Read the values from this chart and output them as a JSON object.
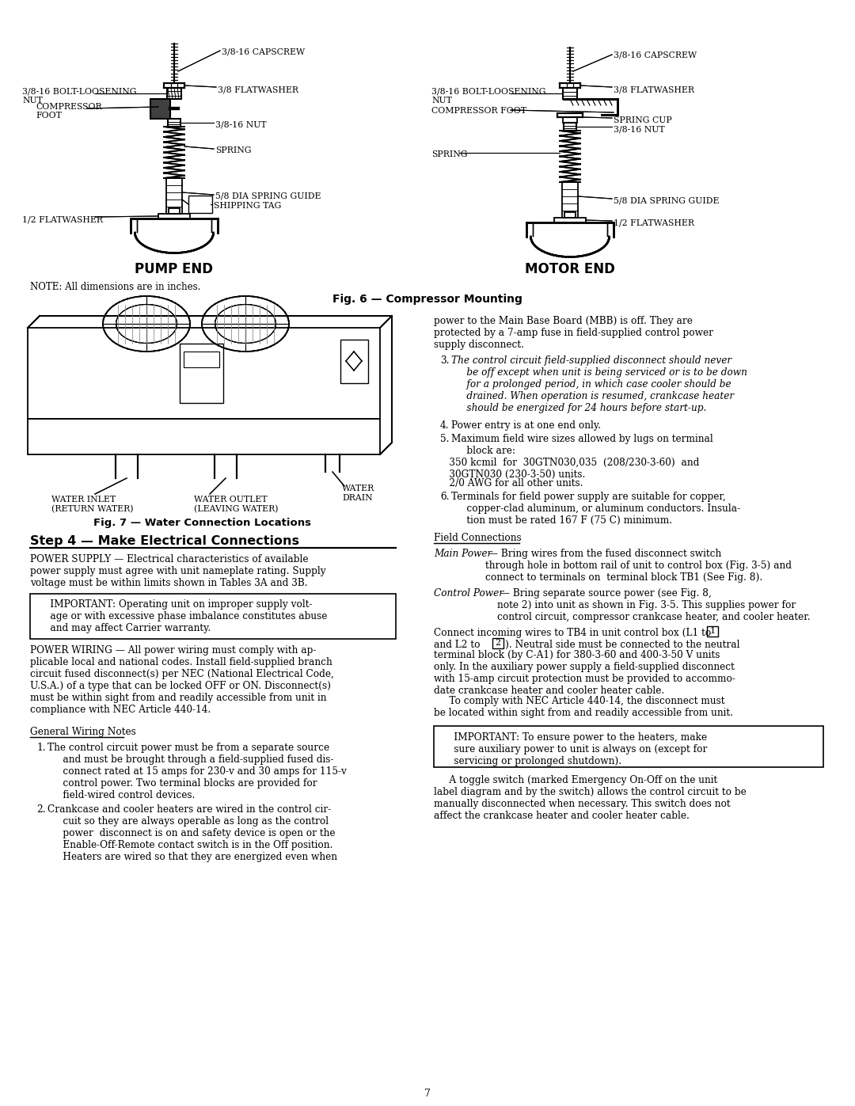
{
  "page_number": "7",
  "background_color": "#ffffff",
  "fig6_caption": "Fig. 6 — Compressor Mounting",
  "fig7_caption": "Fig. 7 — Water Connection Locations",
  "note_text": "NOTE: All dimensions are in inches.",
  "pump_end_label": "PUMP END",
  "motor_end_label": "MOTOR END",
  "step4_heading": "Step 4 — Make Electrical Connections",
  "power_supply_text": "POWER SUPPLY — Electrical characteristics of available\npower supply must agree with unit nameplate rating. Supply\nvoltage must be within limits shown in Tables 3A and 3B.",
  "important_box1": "     IMPORTANT: Operating unit on improper supply volt-\n     age or with excessive phase imbalance constitutes abuse\n     and may affect Carrier warranty.",
  "power_wiring_text": "POWER WIRING — All power wiring must comply with ap-\nplicable local and national codes. Install field-supplied branch\ncircuit fused disconnect(s) per NEC (National Electrical Code,\nU.S.A.) of a type that can be locked OFF or ON. Disconnect(s)\nmust be within sight from and readily accessible from unit in\ncompliance with NEC Article 440-14.",
  "general_wiring_notes_label": "General Wiring Notes",
  "note1": "The control circuit power must be from a separate source\n     and must be brought through a field-supplied fused dis-\n     connect rated at 15 amps for 230-v and 30 amps for 115-v\n     control power. Two terminal blocks are provided for\n     field-wired control devices.",
  "note2": "Crankcase and cooler heaters are wired in the control cir-\n     cuit so they are always operable as long as the control\n     power  disconnect is on and safety device is open or the\n     Enable-Off-Remote contact switch is in the Off position.\n     Heaters are wired so that they are energized even when",
  "right_col_top": "power to the Main Base Board (MBB) is off. They are\nprotected by a 7-amp fuse in field-supplied control power\nsupply disconnect.",
  "note3_number": "3.",
  "note3_italic": "The control circuit field-supplied disconnect should never\n     be off except when unit is being serviced or is to be down\n     for a prolonged period, in which case cooler should be\n     drained. When operation is resumed, crankcase heater\n     should be energized for 24 hours before start-up.",
  "note4": "Power entry is at one end only.",
  "note5_line1": "Maximum field wire sizes allowed by lugs on terminal\n     block are:",
  "note5a": "     350 kcmil  for  30GTN030,035  (208/230-3-60)  and\n     30GTN030 (230-3-50) units.",
  "note5b": "     2/0 AWG for all other units.",
  "note6": "Terminals for field power supply are suitable for copper,\n     copper-clad aluminum, or aluminum conductors. Insula-\n     tion must be rated 167 F (75 C) minimum.",
  "field_connections_label": "Field Connections",
  "main_power_italic": "Main Power",
  "main_power_rest": " — Bring wires from the fused disconnect switch\nthrough hole in bottom rail of unit to control box (Fig. 3-5) and\nconnect to terminals on  terminal block TB1 (See Fig. 8).",
  "control_power_italic": "Control Power",
  "control_power_rest": " — Bring separate source power (see Fig. 8,\nnote 2) into unit as shown in Fig. 3-5. This supplies power for\ncontrol circuit, compressor crankcase heater, and cooler heater.",
  "connect_text1": "Connect incoming wires to TB4 in unit control box (L1 to",
  "connect_text2": "and L2 to",
  "connect_text3a": "). Neutral side must be connected to the neutral",
  "connect_text3b": "terminal block (by C-A1) for 380-3-60 and 400-3-50 V units\nonly. In the auxiliary power supply a field-supplied disconnect\nwith 15-amp circuit protection must be provided to accommo-\ndate crankcase heater and cooler heater cable.",
  "nec_indent": "     To comply with NEC Article 440-14, the disconnect must\nbe located within sight from and readily accessible from unit.",
  "important_box2": "     IMPORTANT: To ensure power to the heaters, make\n     sure auxiliary power to unit is always on (except for\n     servicing or prolonged shutdown).",
  "toggle_indent": "     A toggle switch (marked Emergency On-Off on the unit\nlabel diagram and by the switch) allows the control circuit to be\nmanually disconnected when necessary. This switch does not\naffect the crankcase heater and cooler heater cable.",
  "water_inlet_label": "WATER INLET\n(RETURN WATER)",
  "water_outlet_label": "WATER OUTLET\n(LEAVING WATER)",
  "water_drain_label": "WATER\nDRAIN"
}
